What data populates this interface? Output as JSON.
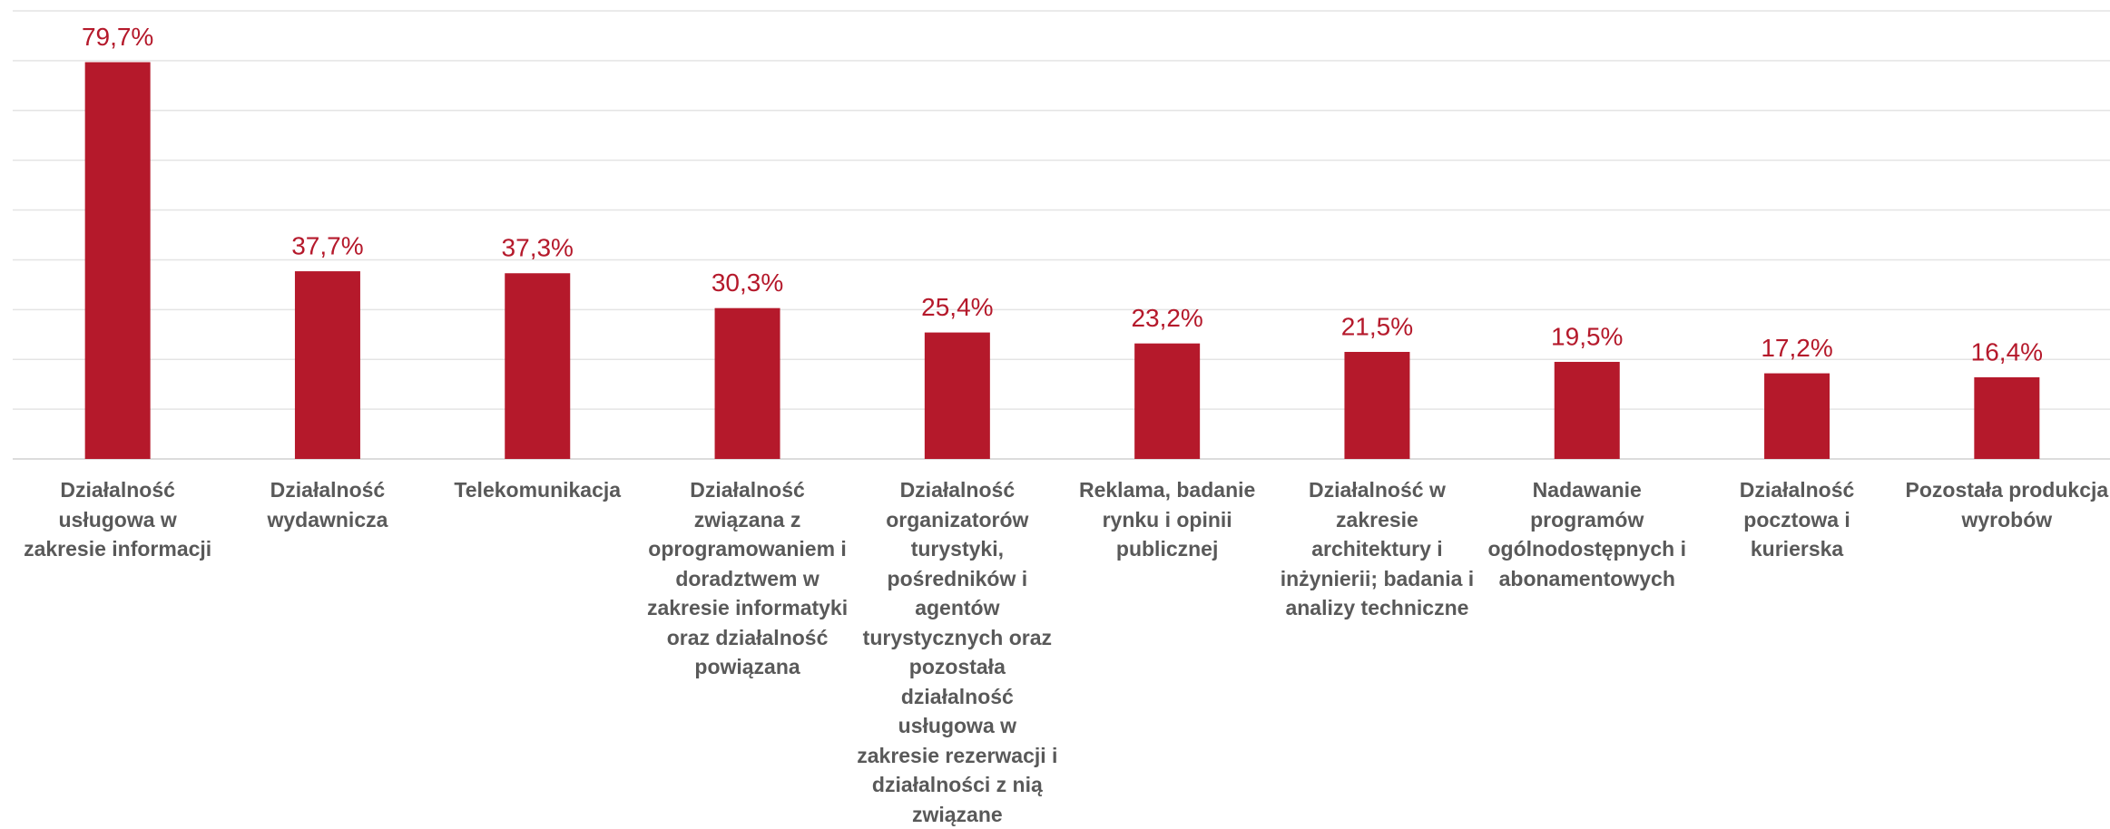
{
  "chart_data": {
    "type": "bar",
    "categories": [
      "Działalność usługowa w zakresie informacji",
      "Działalność wydawnicza",
      "Telekomunikacja",
      "Działalność związana z oprogramowaniem i doradztwem w zakresie informatyki oraz działalność powiązana",
      "Działalność organizatorów turystyki, pośredników i agentów turystycznych oraz pozostała działalność usługowa w zakresie rezerwacji i działalności z nią związane",
      "Reklama, badanie rynku i opinii publicznej",
      "Działalność w zakresie architektury i inżynierii; badania i analizy techniczne",
      "Nadawanie programów ogólnodostępnych i abonamentowych",
      "Działalność pocztowa i kurierska",
      "Pozostała produkcja wyrobów"
    ],
    "values": [
      79.7,
      37.7,
      37.3,
      30.3,
      25.4,
      23.2,
      21.5,
      19.5,
      17.2,
      16.4
    ],
    "value_labels": [
      "79,7%",
      "37,7%",
      "37,3%",
      "30,3%",
      "25,4%",
      "23,2%",
      "21,5%",
      "19,5%",
      "17,2%",
      "16,4%"
    ],
    "color": "#b5192b",
    "ylim": [
      0,
      90
    ],
    "yticks": [
      0,
      10,
      20,
      30,
      40,
      50,
      60,
      70,
      80,
      90
    ],
    "grid": true
  }
}
